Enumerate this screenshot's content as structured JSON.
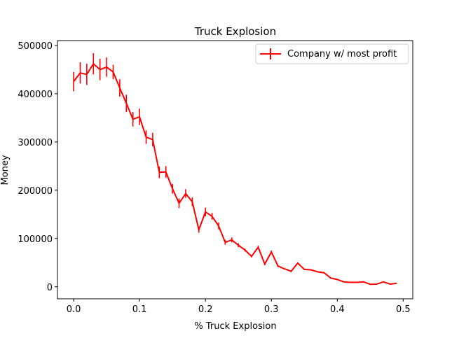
{
  "chart_data": {
    "type": "line",
    "title": "Truck Explosion",
    "xlabel": "% Truck Explosion",
    "ylabel": "Money",
    "xlim": [
      -0.0245,
      0.5145
    ],
    "ylim": [
      -25000,
      510000
    ],
    "xticks": [
      0.0,
      0.1,
      0.2,
      0.3,
      0.4,
      0.5
    ],
    "xtick_labels": [
      "0.0",
      "0.1",
      "0.2",
      "0.3",
      "0.4",
      "0.5"
    ],
    "yticks": [
      0,
      100000,
      200000,
      300000,
      400000,
      500000
    ],
    "ytick_labels": [
      "0",
      "100000",
      "200000",
      "300000",
      "400000",
      "500000"
    ],
    "grid": false,
    "legend_position": "top-right",
    "colors": {
      "series": "#ff0000",
      "axes": "#000000",
      "legend_border": "#cccccc"
    },
    "series": [
      {
        "name": "Company w/ most profit",
        "x": [
          0.0,
          0.01,
          0.02,
          0.03,
          0.04,
          0.05,
          0.06,
          0.07,
          0.08,
          0.09,
          0.1,
          0.11,
          0.12,
          0.13,
          0.14,
          0.15,
          0.16,
          0.17,
          0.18,
          0.19,
          0.2,
          0.21,
          0.22,
          0.23,
          0.24,
          0.25,
          0.26,
          0.27,
          0.28,
          0.29,
          0.3,
          0.31,
          0.32,
          0.33,
          0.34,
          0.35,
          0.36,
          0.37,
          0.38,
          0.39,
          0.4,
          0.41,
          0.42,
          0.43,
          0.44,
          0.45,
          0.46,
          0.47,
          0.48,
          0.49
        ],
        "y": [
          425000,
          443000,
          440000,
          462000,
          450000,
          455000,
          445000,
          412000,
          380000,
          347000,
          352000,
          310000,
          305000,
          237000,
          238000,
          203000,
          173000,
          193000,
          176000,
          118000,
          155000,
          146000,
          126000,
          92000,
          97000,
          86000,
          76000,
          63000,
          82000,
          47000,
          72000,
          43000,
          37000,
          32000,
          49000,
          36000,
          35000,
          31000,
          29000,
          18000,
          15000,
          10000,
          9000,
          9000,
          10000,
          5000,
          5500,
          10000,
          5500,
          7000
        ],
        "yerr": [
          20000,
          22000,
          22000,
          22000,
          22000,
          20000,
          15000,
          18000,
          18000,
          15000,
          17000,
          14000,
          14000,
          12000,
          12000,
          10000,
          10000,
          9000,
          9000,
          6000,
          9000,
          7000,
          7000,
          5000,
          5000,
          4000,
          3000,
          2500,
          3000,
          2500,
          3000,
          2000,
          1500,
          1500,
          1500,
          1500,
          1200,
          1200,
          1200,
          800,
          800,
          600,
          600,
          500,
          500,
          400,
          400,
          400,
          400,
          400
        ]
      }
    ]
  }
}
